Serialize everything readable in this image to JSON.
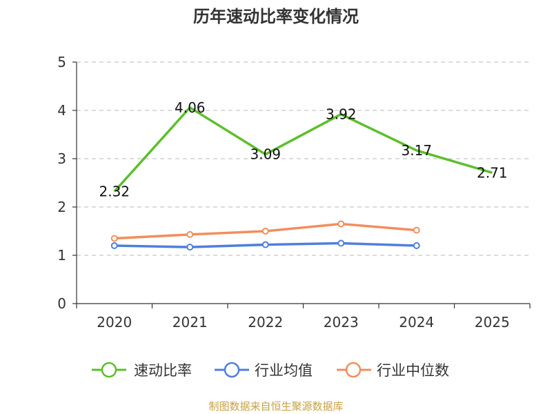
{
  "chart_data": {
    "type": "line",
    "title": "历年速动比率变化情况",
    "categories": [
      "2020",
      "2021",
      "2022",
      "2023",
      "2024",
      "2025"
    ],
    "ylim": [
      0,
      5
    ],
    "yticks": [
      0,
      1,
      2,
      3,
      4,
      5
    ],
    "grid": "horizontal dashed",
    "legend_position": "bottom",
    "series": [
      {
        "name": "速动比率",
        "color": "#5cbf2a",
        "values": [
          2.32,
          4.06,
          3.09,
          3.92,
          3.17,
          2.71
        ],
        "labels": [
          "2.32",
          "4.06",
          "3.09",
          "3.92",
          "3.17",
          "2.71"
        ]
      },
      {
        "name": "行业均值",
        "color": "#4e7fdc",
        "values": [
          1.2,
          1.17,
          1.22,
          1.25,
          1.2,
          null
        ]
      },
      {
        "name": "行业中位数",
        "color": "#f28e5c",
        "values": [
          1.35,
          1.43,
          1.5,
          1.65,
          1.52,
          null
        ]
      }
    ]
  },
  "source_text": "制图数据来自恒生聚源数据库"
}
